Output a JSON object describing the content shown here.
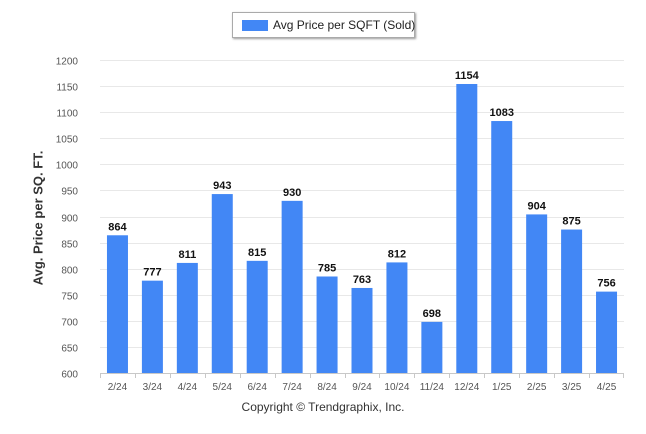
{
  "legend": {
    "label": "Avg Price per SQFT (Sold)"
  },
  "footer": {
    "copyright": "Copyright © Trendgraphix, Inc."
  },
  "colors": {
    "bar": "#4287f5",
    "grid": "#e8e8e8",
    "axis": "#c8c8c8",
    "text": "#333333"
  },
  "chart_data": {
    "type": "bar",
    "title": "",
    "xlabel": "",
    "ylabel": "Avg. Price per SQ. FT.",
    "categories": [
      "2/24",
      "3/24",
      "4/24",
      "5/24",
      "6/24",
      "7/24",
      "8/24",
      "9/24",
      "10/24",
      "11/24",
      "12/24",
      "1/25",
      "2/25",
      "3/25",
      "4/25"
    ],
    "series": [
      {
        "name": "Avg Price per SQFT (Sold)",
        "values": [
          864,
          777,
          811,
          943,
          815,
          930,
          785,
          763,
          812,
          698,
          1154,
          1083,
          904,
          875,
          756
        ]
      }
    ],
    "ylim": [
      600,
      1200
    ],
    "yticks": [
      600,
      650,
      700,
      750,
      800,
      850,
      900,
      950,
      1000,
      1050,
      1100,
      1150,
      1200
    ],
    "grid": true,
    "legend_position": "top-center",
    "data_labels": true
  }
}
